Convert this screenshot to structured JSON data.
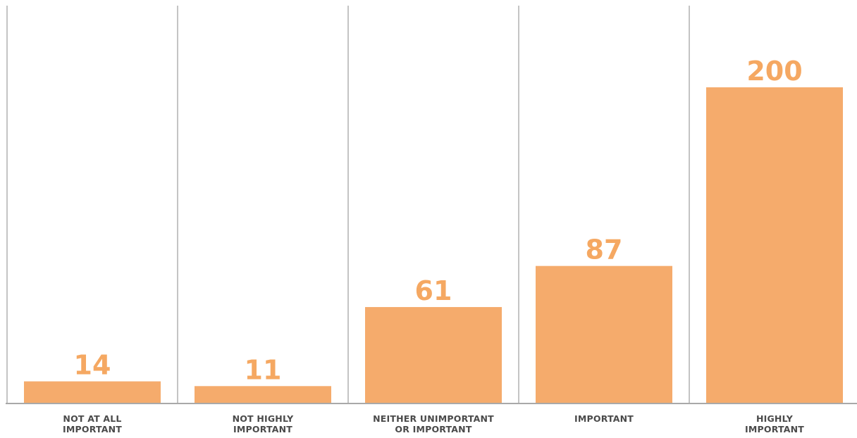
{
  "chart_data": {
    "type": "bar",
    "title": "",
    "xlabel": "",
    "ylabel": "",
    "categories": [
      [
        "NOT AT ALL",
        "IMPORTANT"
      ],
      [
        "NOT HIGHLY",
        "IMPORTANT"
      ],
      [
        "NEITHER UNIMPORTANT",
        "OR IMPORTANT"
      ],
      [
        "IMPORTANT"
      ],
      [
        "HIGHLY",
        "IMPORTANT"
      ]
    ],
    "values": [
      14,
      11,
      61,
      87,
      200
    ],
    "ylim": [
      0,
      250
    ],
    "grid": false,
    "legend": "none",
    "data_labels": "above-bars"
  },
  "colors": {
    "bar": "#f5ab6c",
    "value_label": "#f5a862",
    "category_label": "#4a4a4a",
    "divider": "#c4c4c4",
    "baseline": "#a9a9a9"
  }
}
